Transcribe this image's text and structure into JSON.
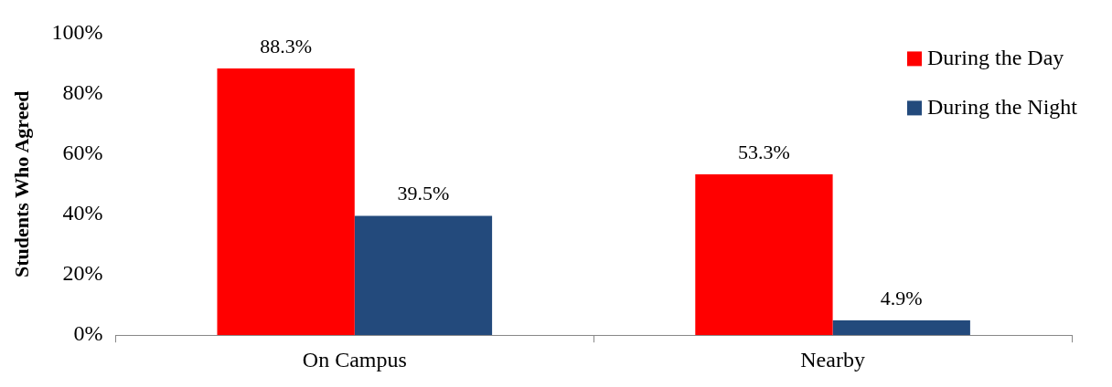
{
  "chart_data": {
    "type": "bar",
    "ylabel": "Students Who Agreed",
    "categories": [
      "On Campus",
      "Nearby"
    ],
    "series": [
      {
        "name": "During the Day",
        "color": "#ff0000",
        "values": [
          88.3,
          53.3
        ],
        "value_labels": [
          "88.3%",
          "53.3%"
        ]
      },
      {
        "name": "During the Night",
        "color": "#234a7c",
        "values": [
          39.5,
          4.9
        ],
        "value_labels": [
          "39.5%",
          "4.9%"
        ]
      }
    ],
    "ylim": [
      0,
      100
    ],
    "yticks": [
      {
        "value": 0,
        "label": "0%"
      },
      {
        "value": 20,
        "label": "20%"
      },
      {
        "value": 40,
        "label": "40%"
      },
      {
        "value": 60,
        "label": "60%"
      },
      {
        "value": 80,
        "label": "80%"
      },
      {
        "value": 100,
        "label": "100%"
      }
    ],
    "grid": false,
    "legend": "top right"
  }
}
